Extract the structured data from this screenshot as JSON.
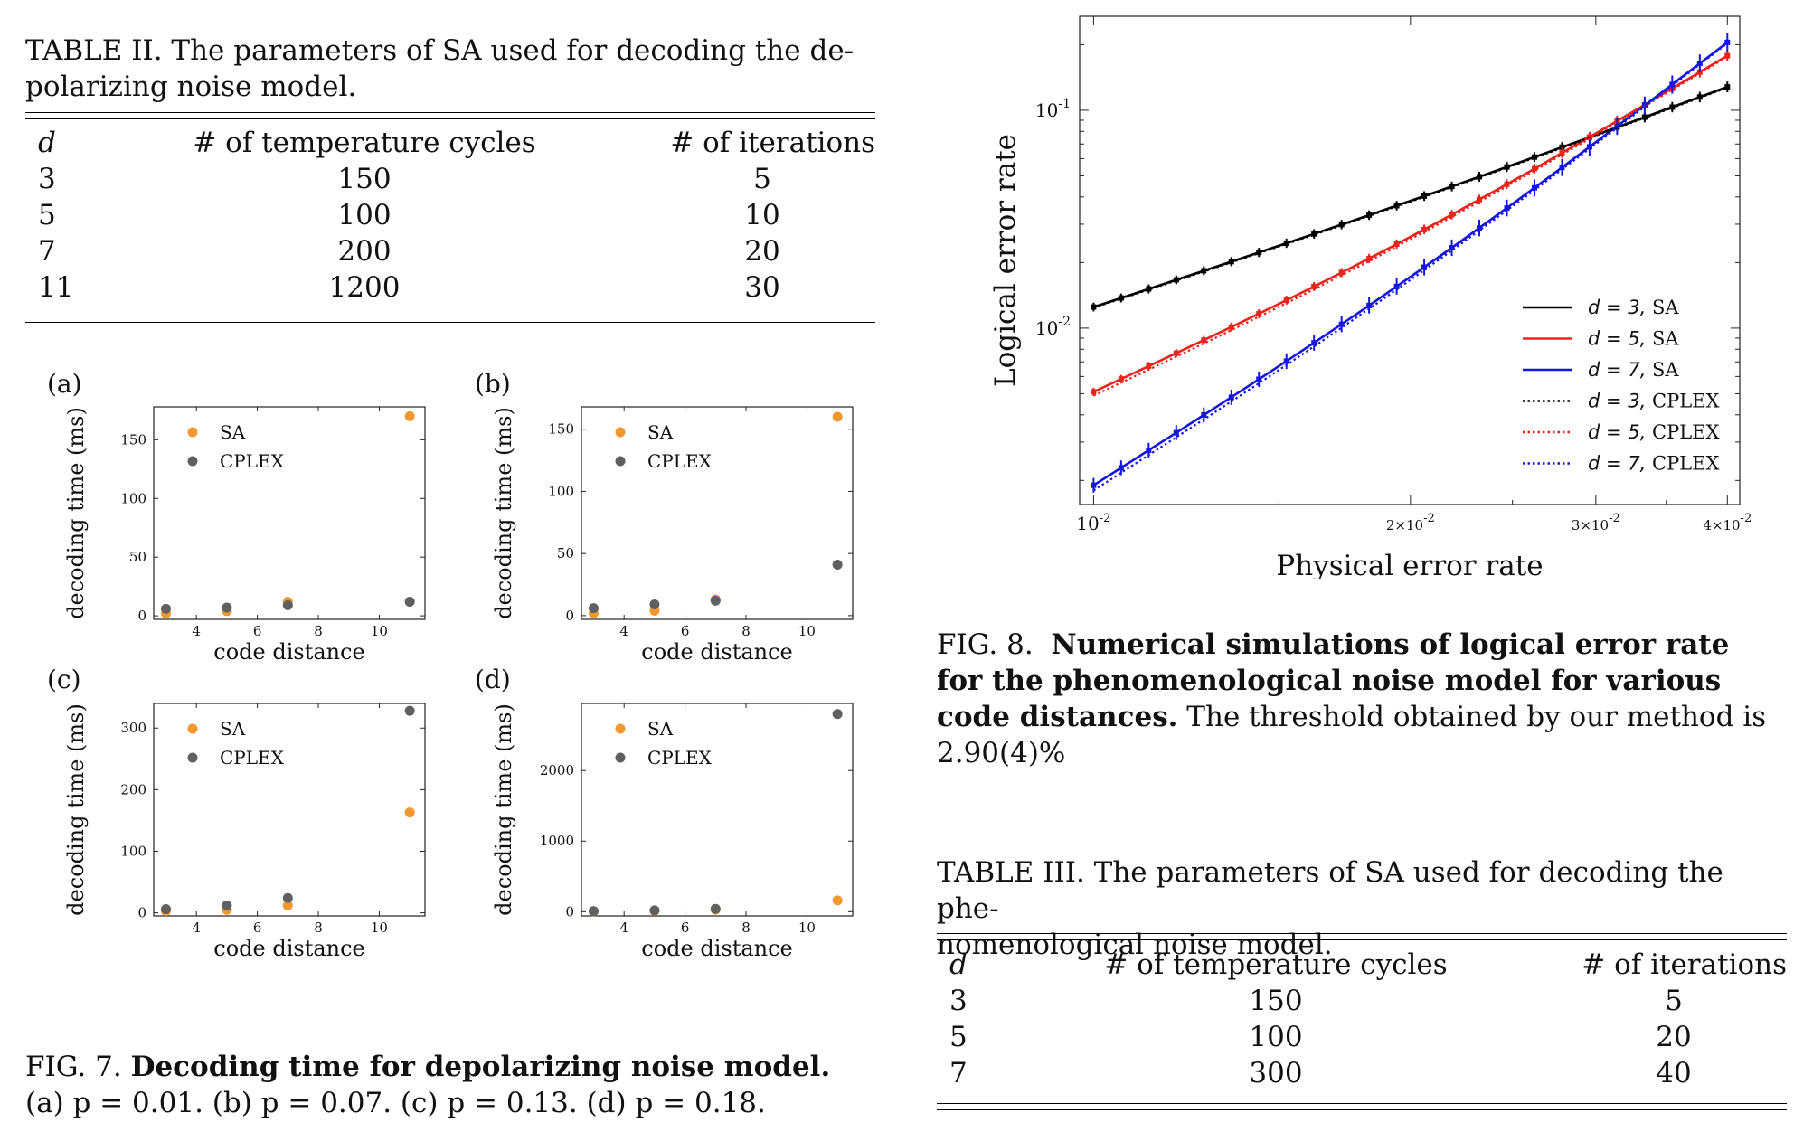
{
  "table2": {
    "caption": "TABLE II. The parameters of SA used for decoding the depolarizing noise model.",
    "caption_line1": "TABLE II. The parameters of SA used for decoding the de-",
    "caption_line2": "polarizing noise model.",
    "headers": [
      "d",
      "# of temperature cycles",
      "# of iterations"
    ],
    "rows": [
      [
        "3",
        "150",
        "5"
      ],
      [
        "5",
        "100",
        "10"
      ],
      [
        "7",
        "200",
        "20"
      ],
      [
        "11",
        "1200",
        "30"
      ]
    ]
  },
  "table3": {
    "caption_line1": "TABLE III. The parameters of SA used for decoding the phe-",
    "caption_line2": "nomenological noise model.",
    "headers": [
      "d",
      "# of temperature cycles",
      "# of iterations"
    ],
    "rows": [
      [
        "3",
        "150",
        "5"
      ],
      [
        "5",
        "100",
        "20"
      ],
      [
        "7",
        "300",
        "40"
      ]
    ]
  },
  "fig7": {
    "caption_bold": "Decoding time for depolarizing noise model.",
    "caption_prefix": "FIG. 7.",
    "caption_line2": "(a) p = 0.01. (b) p = 0.07. (c) p = 0.13. (d) p = 0.18."
  },
  "fig8": {
    "caption_prefix": "FIG. 8.",
    "caption_bold_1": "Numerical simulations of logical error rate",
    "caption_bold_2": "for the phenomenological noise model for various",
    "caption_bold_3": "code distances.",
    "caption_rest_3": "The threshold obtained by our method is",
    "caption_rest_4": "2.90(4)%"
  },
  "colors": {
    "sa": "#f0982f",
    "cplex": "#606060",
    "d3": "#000000",
    "d5": "#e8241c",
    "d7": "#1515e6"
  },
  "chart_data": [
    {
      "type": "scatter",
      "panel": "(a)",
      "xlabel": "code distance",
      "ylabel": "decoding time (ms)",
      "xlim": [
        2.6,
        11.5
      ],
      "ylim": [
        -3,
        178
      ],
      "xticks": [
        4,
        6,
        8,
        10
      ],
      "yticks": [
        0,
        50,
        100,
        150
      ],
      "series": [
        {
          "name": "SA",
          "x": [
            3,
            5,
            7,
            11
          ],
          "values": [
            2,
            4,
            12,
            170
          ]
        },
        {
          "name": "CPLEX",
          "x": [
            3,
            5,
            7,
            11
          ],
          "values": [
            6,
            7,
            9,
            12
          ]
        }
      ],
      "legend": "top-left"
    },
    {
      "type": "scatter",
      "panel": "(b)",
      "xlabel": "code distance",
      "ylabel": "decoding time (ms)",
      "xlim": [
        2.6,
        11.5
      ],
      "ylim": [
        -3,
        168
      ],
      "xticks": [
        4,
        6,
        8,
        10
      ],
      "yticks": [
        0,
        50,
        100,
        150
      ],
      "series": [
        {
          "name": "SA",
          "x": [
            3,
            5,
            7,
            11
          ],
          "values": [
            2,
            4,
            13,
            160
          ]
        },
        {
          "name": "CPLEX",
          "x": [
            3,
            5,
            7,
            11
          ],
          "values": [
            6,
            9,
            12,
            41
          ]
        }
      ],
      "legend": "top-left"
    },
    {
      "type": "scatter",
      "panel": "(c)",
      "xlabel": "code distance",
      "ylabel": "decoding time (ms)",
      "xlim": [
        2.6,
        11.5
      ],
      "ylim": [
        -5,
        340
      ],
      "xticks": [
        4,
        6,
        8,
        10
      ],
      "yticks": [
        0,
        100,
        200,
        300
      ],
      "series": [
        {
          "name": "SA",
          "x": [
            3,
            5,
            7,
            11
          ],
          "values": [
            3,
            5,
            12,
            163
          ]
        },
        {
          "name": "CPLEX",
          "x": [
            3,
            5,
            7,
            11
          ],
          "values": [
            6,
            12,
            24,
            328
          ]
        }
      ],
      "legend": "top-left"
    },
    {
      "type": "scatter",
      "panel": "(d)",
      "xlabel": "code distance",
      "ylabel": "decoding time (ms)",
      "xlim": [
        2.6,
        11.5
      ],
      "ylim": [
        -60,
        2950
      ],
      "xticks": [
        4,
        6,
        8,
        10
      ],
      "yticks": [
        0,
        1000,
        2000
      ],
      "series": [
        {
          "name": "SA",
          "x": [
            3,
            5,
            7,
            11
          ],
          "values": [
            5,
            12,
            30,
            160
          ]
        },
        {
          "name": "CPLEX",
          "x": [
            3,
            5,
            7,
            11
          ],
          "values": [
            8,
            18,
            40,
            2800
          ]
        }
      ],
      "legend": "top-left"
    },
    {
      "type": "line",
      "panel": "fig8",
      "xlabel": "Physical error rate",
      "ylabel": "Logical error rate",
      "xscale": "log",
      "yscale": "log",
      "xlim": [
        0.0097,
        0.0411
      ],
      "ylim": [
        0.00155,
        0.27
      ],
      "xticks": [
        0.01,
        0.02,
        0.03,
        0.04
      ],
      "xticklabels": [
        "10^-2",
        "2×10^-2",
        "3×10^-2",
        "4×10^-2"
      ],
      "yticks": [
        0.01,
        0.1
      ],
      "yticklabels": [
        "10^-2",
        "10^-1"
      ],
      "legend": "lower-right",
      "series": [
        {
          "name": "d = 3, SA",
          "style": "solid",
          "color_key": "d3",
          "x_start": 0.01,
          "x_end": 0.04,
          "y_start": 0.0125,
          "y_end": 0.128
        },
        {
          "name": "d = 5, SA",
          "style": "solid",
          "color_key": "d5",
          "x_start": 0.01,
          "x_end": 0.04,
          "y_start": 0.0051,
          "y_end": 0.178
        },
        {
          "name": "d = 7, SA",
          "style": "solid",
          "color_key": "d7",
          "x_start": 0.01,
          "x_end": 0.04,
          "y_start": 0.0019,
          "y_end": 0.205
        },
        {
          "name": "d = 3, CPLEX",
          "style": "dotted",
          "color_key": "d3",
          "x_start": 0.01,
          "x_end": 0.04,
          "y_start": 0.0124,
          "y_end": 0.127
        },
        {
          "name": "d = 5, CPLEX",
          "style": "dotted",
          "color_key": "d5",
          "x_start": 0.01,
          "x_end": 0.04,
          "y_start": 0.0049,
          "y_end": 0.176
        },
        {
          "name": "d = 7, CPLEX",
          "style": "dotted",
          "color_key": "d7",
          "x_start": 0.01,
          "x_end": 0.04,
          "y_start": 0.0018,
          "y_end": 0.203
        }
      ]
    }
  ]
}
